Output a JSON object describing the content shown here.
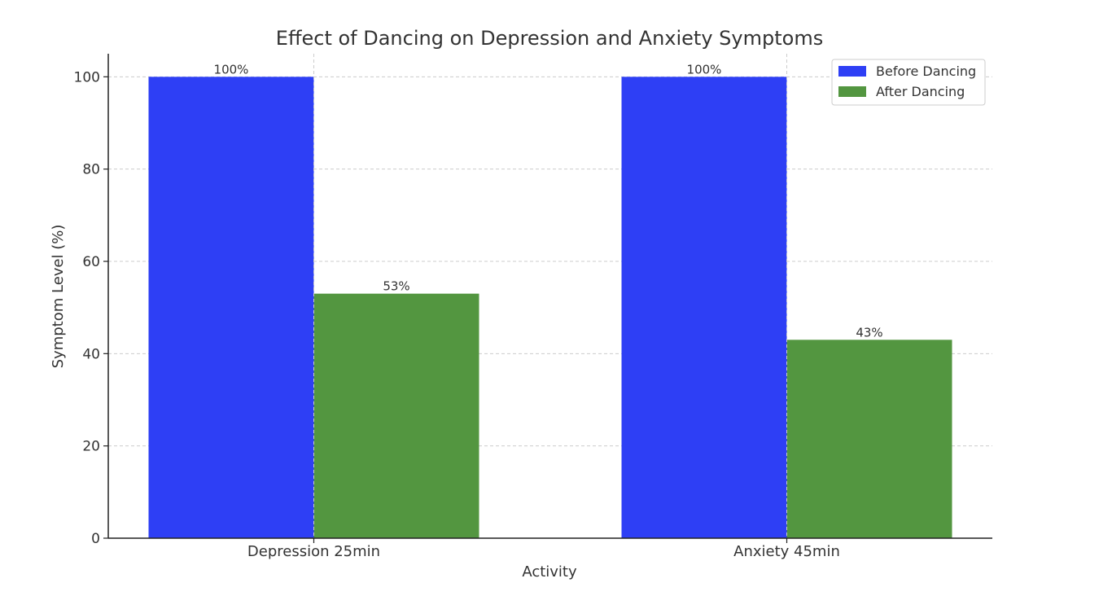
{
  "chart_data": {
    "type": "bar",
    "title": "Effect of Dancing on Depression and Anxiety Symptoms",
    "xlabel": "Activity",
    "ylabel": "Symptom Level (%)",
    "categories": [
      "Depression 25min",
      "Anxiety 45min"
    ],
    "series": [
      {
        "name": "Before Dancing",
        "values": [
          100,
          100
        ],
        "labels": [
          "100%",
          "100%"
        ],
        "color": "#2e3ff5"
      },
      {
        "name": "After Dancing",
        "values": [
          53,
          43
        ],
        "labels": [
          "53%",
          "43%"
        ],
        "color": "#539640"
      }
    ],
    "ylim": [
      0,
      105
    ],
    "yticks": [
      0,
      20,
      40,
      60,
      80,
      100
    ],
    "ytick_labels": [
      "0",
      "20",
      "40",
      "60",
      "80",
      "100"
    ],
    "grid": true,
    "legend_position": "top-right"
  }
}
